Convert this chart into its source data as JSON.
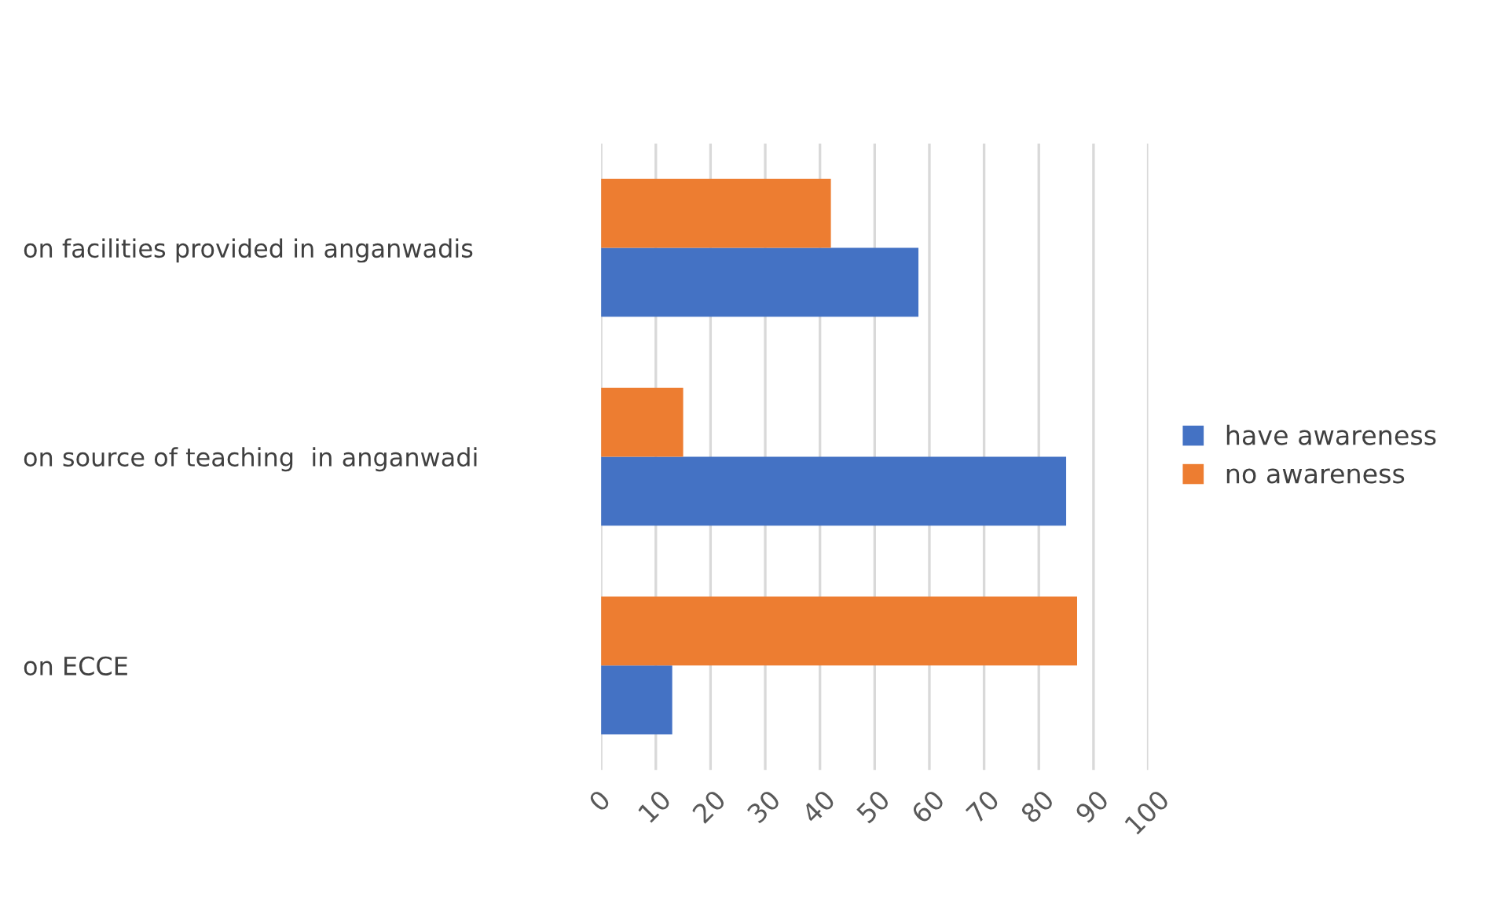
{
  "chart_data": {
    "type": "bar",
    "orientation": "horizontal",
    "categories": [
      "on facilities provided in anganwadis",
      "on source of teaching  in anganwadi",
      "on ECCE"
    ],
    "series": [
      {
        "name": "have awareness",
        "color": "#4472c4",
        "values": [
          58,
          85,
          13
        ]
      },
      {
        "name": "no awareness",
        "color": "#ed7d31",
        "values": [
          42,
          15,
          87
        ]
      }
    ],
    "xlim": [
      0,
      100
    ],
    "xticks": [
      0,
      10,
      20,
      30,
      40,
      50,
      60,
      70,
      80,
      90,
      100
    ],
    "grid": "x",
    "legend": "right"
  }
}
